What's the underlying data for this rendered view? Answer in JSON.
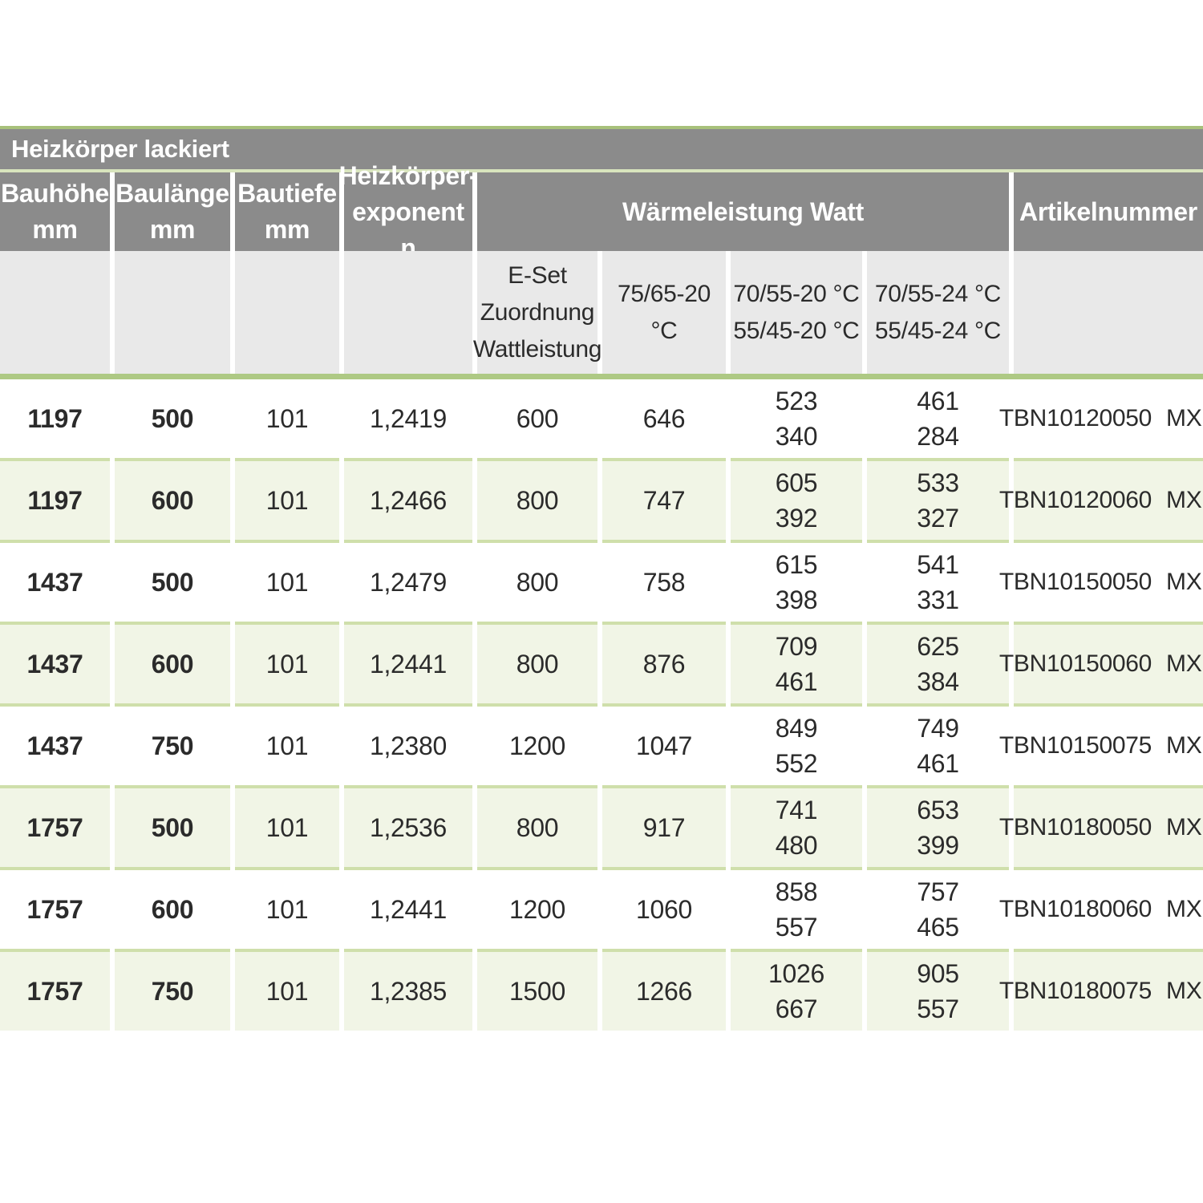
{
  "title": "Heizkörper lackiert",
  "colors": {
    "header_gray": "#8b8b8b",
    "subheader_gray": "#e9e9e9",
    "row_green": "#f1f5e6",
    "sep_green": "#cfdfab",
    "band_green": "#aec984",
    "top_line": "#a8c17b",
    "title_gap": "#d8e4bd",
    "accent_green": "#8cbd3f",
    "text_dark": "#2b2b2b"
  },
  "header": {
    "bauhoehe": {
      "line1": "Bauhöhe",
      "line2": "mm"
    },
    "baulaenge": {
      "line1": "Baulänge",
      "line2": "mm"
    },
    "bautiefe": {
      "line1": "Bautiefe",
      "line2": "mm"
    },
    "exponent": {
      "line1": "Heizkörper-",
      "line2": "exponent n"
    },
    "group": "Wärmeleistung Watt",
    "artikel": "Artikelnummer"
  },
  "subheader": {
    "eset": {
      "line1": "E-Set",
      "line2": "Zuordnung",
      "line3": "Wattleistung"
    },
    "t7565": "75/65-20 °C",
    "t7055_20": {
      "line1": "70/55-20 °C",
      "line2": "55/45-20 °C"
    },
    "t7055_24": {
      "line1": "70/55-24 °C",
      "line2": "55/45-24 °C"
    }
  },
  "artikel_suffix": "MXK",
  "rows": [
    {
      "bauhoehe": "1197",
      "baulaenge": "500",
      "bautiefe": "101",
      "exponent": "1,2419",
      "eset": "600",
      "w7565": "646",
      "w7055_20a": "523",
      "w7055_20b": "340",
      "w7055_24a": "461",
      "w7055_24b": "284",
      "artikel": "TBN10120050"
    },
    {
      "bauhoehe": "1197",
      "baulaenge": "600",
      "bautiefe": "101",
      "exponent": "1,2466",
      "eset": "800",
      "w7565": "747",
      "w7055_20a": "605",
      "w7055_20b": "392",
      "w7055_24a": "533",
      "w7055_24b": "327",
      "artikel": "TBN10120060"
    },
    {
      "bauhoehe": "1437",
      "baulaenge": "500",
      "bautiefe": "101",
      "exponent": "1,2479",
      "eset": "800",
      "w7565": "758",
      "w7055_20a": "615",
      "w7055_20b": "398",
      "w7055_24a": "541",
      "w7055_24b": "331",
      "artikel": "TBN10150050"
    },
    {
      "bauhoehe": "1437",
      "baulaenge": "600",
      "bautiefe": "101",
      "exponent": "1,2441",
      "eset": "800",
      "w7565": "876",
      "w7055_20a": "709",
      "w7055_20b": "461",
      "w7055_24a": "625",
      "w7055_24b": "384",
      "artikel": "TBN10150060"
    },
    {
      "bauhoehe": "1437",
      "baulaenge": "750",
      "bautiefe": "101",
      "exponent": "1,2380",
      "eset": "1200",
      "w7565": "1047",
      "w7055_20a": "849",
      "w7055_20b": "552",
      "w7055_24a": "749",
      "w7055_24b": "461",
      "artikel": "TBN10150075"
    },
    {
      "bauhoehe": "1757",
      "baulaenge": "500",
      "bautiefe": "101",
      "exponent": "1,2536",
      "eset": "800",
      "w7565": "917",
      "w7055_20a": "741",
      "w7055_20b": "480",
      "w7055_24a": "653",
      "w7055_24b": "399",
      "artikel": "TBN10180050"
    },
    {
      "bauhoehe": "1757",
      "baulaenge": "600",
      "bautiefe": "101",
      "exponent": "1,2441",
      "eset": "1200",
      "w7565": "1060",
      "w7055_20a": "858",
      "w7055_20b": "557",
      "w7055_24a": "757",
      "w7055_24b": "465",
      "artikel": "TBN10180060"
    },
    {
      "bauhoehe": "1757",
      "baulaenge": "750",
      "bautiefe": "101",
      "exponent": "1,2385",
      "eset": "1500",
      "w7565": "1266",
      "w7055_20a": "1026",
      "w7055_20b": "667",
      "w7055_24a": "905",
      "w7055_24b": "557",
      "artikel": "TBN10180075"
    }
  ]
}
